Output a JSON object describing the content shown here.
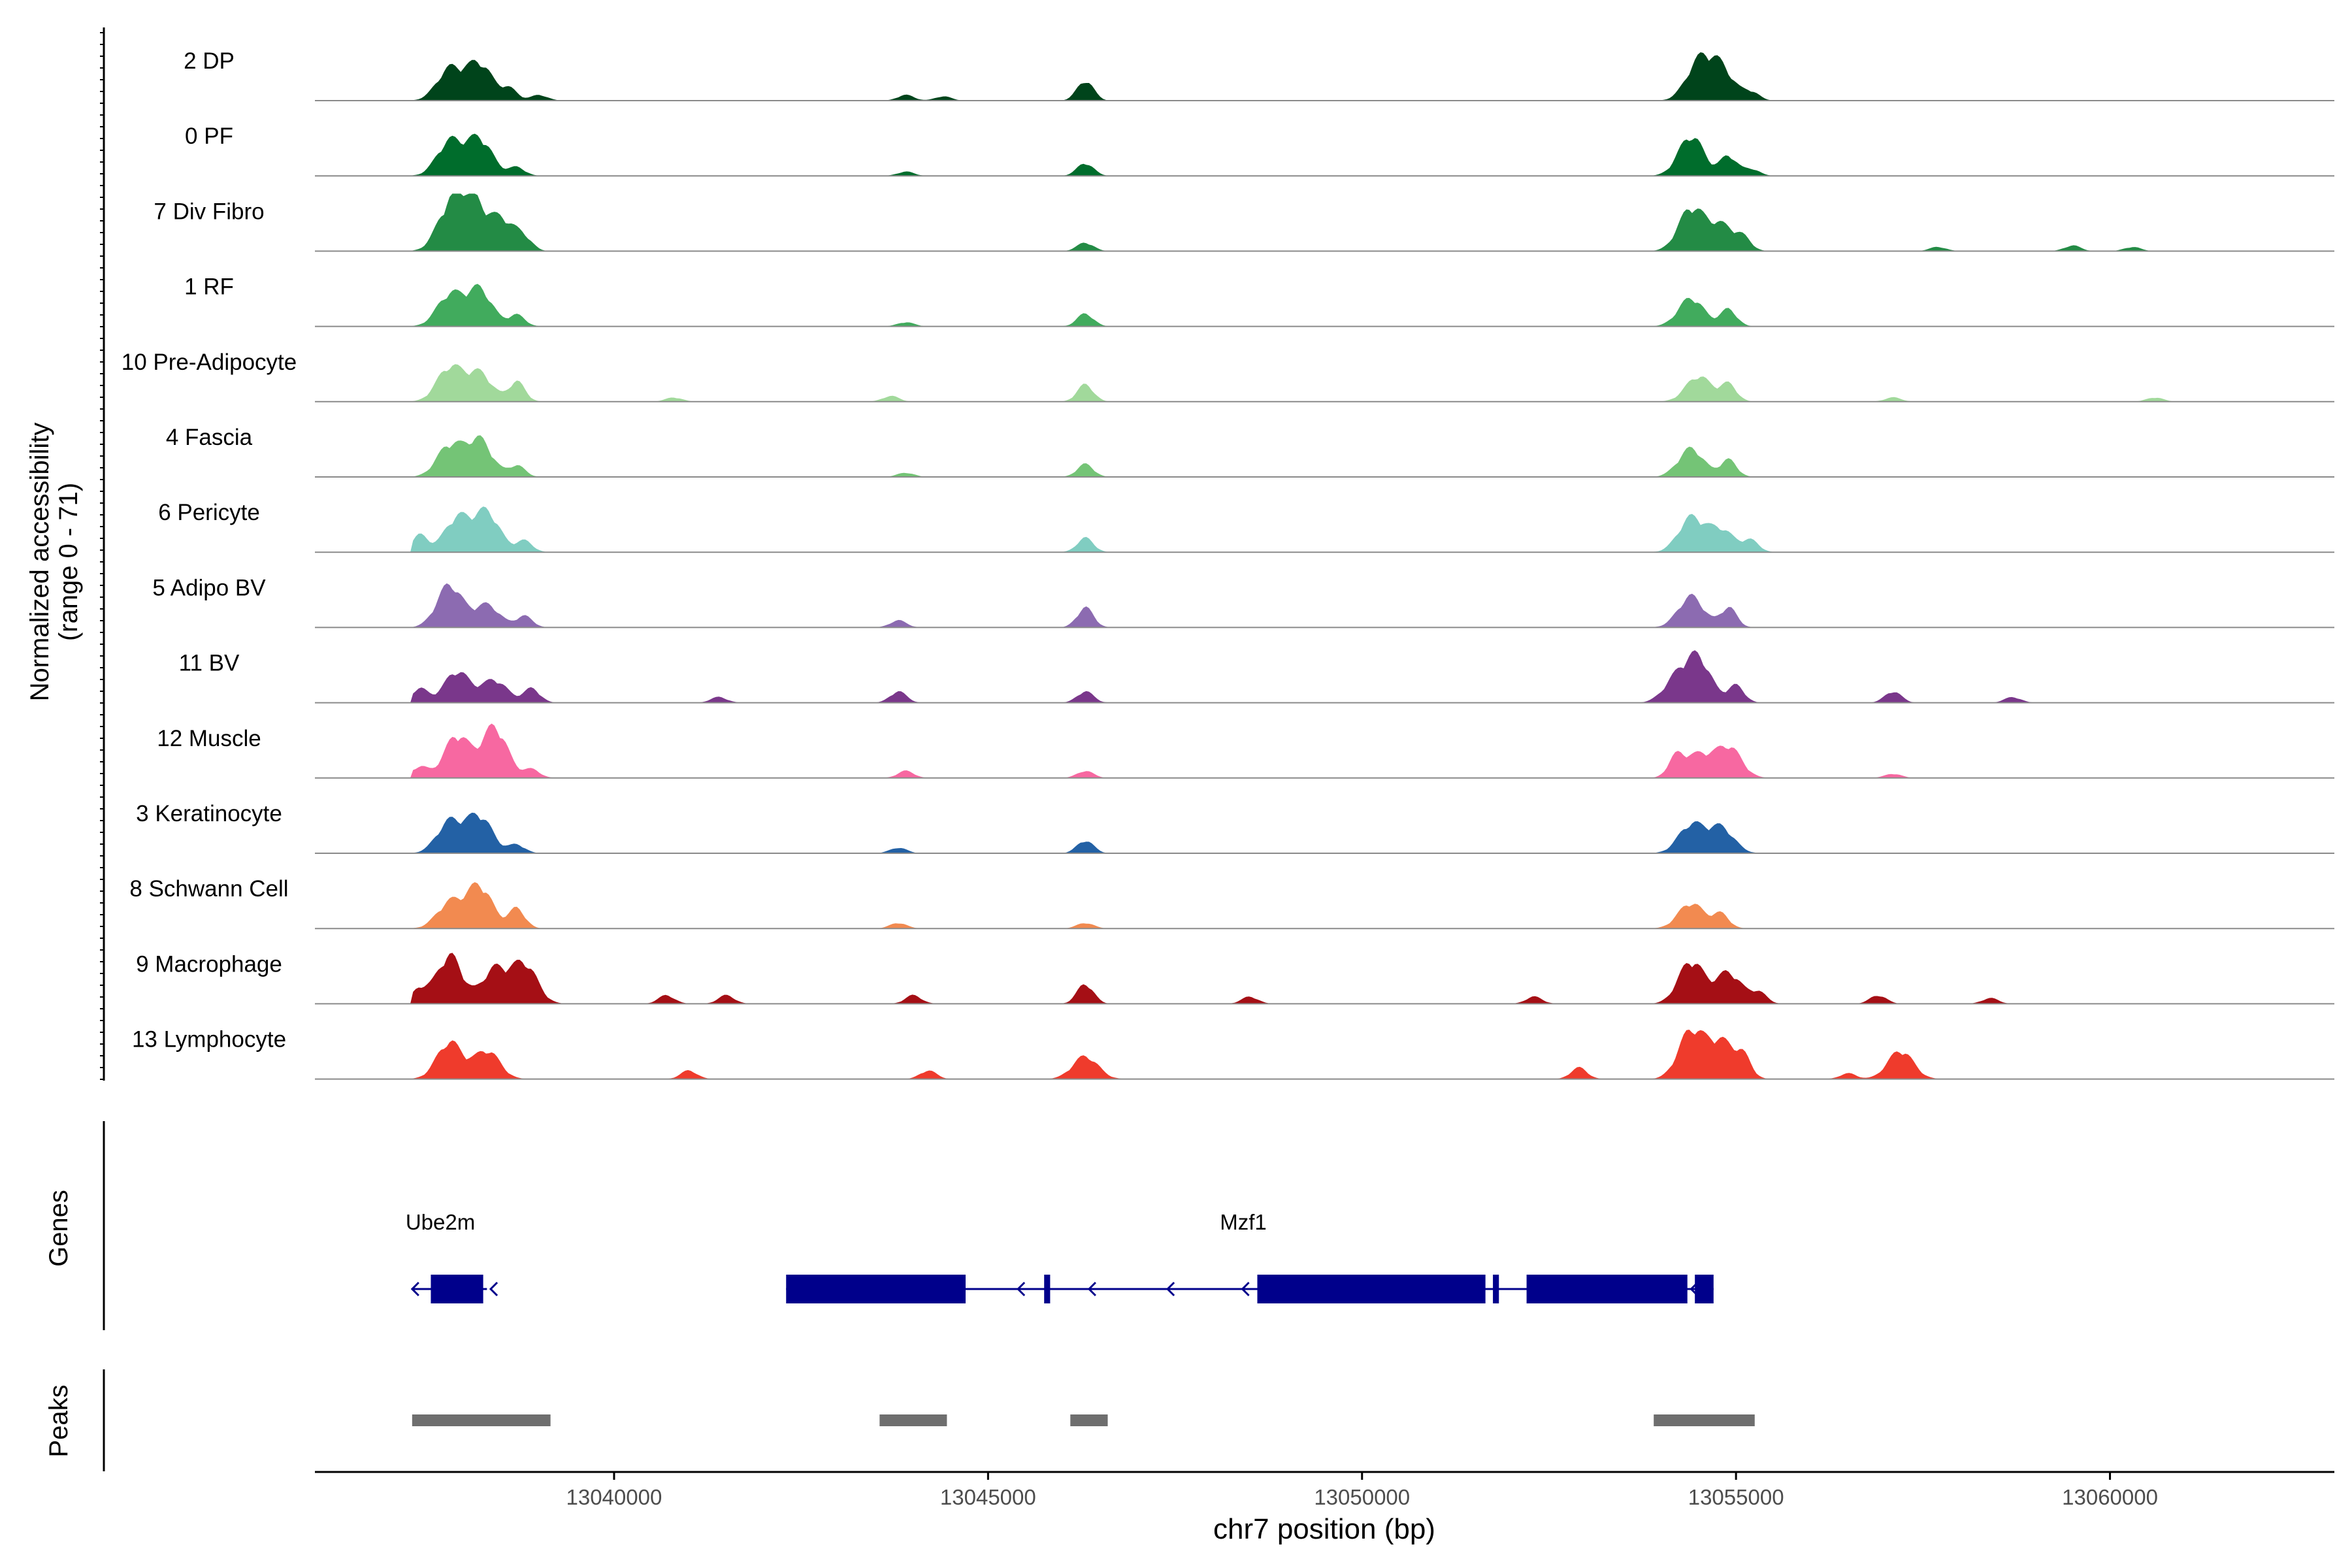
{
  "chart_data": {
    "type": "area",
    "title": "",
    "xlabel": "chr7 position (bp)",
    "ylabel": "Normalized accessibility",
    "ylabel_sub": "(range 0 - 71)",
    "xlim": [
      13036000,
      13063000
    ],
    "xticks": [
      13040000,
      13045000,
      13050000,
      13055000,
      13060000
    ],
    "xtick_labels": [
      "13040000",
      "13045000",
      "13050000",
      "13055000",
      "13060000"
    ],
    "y_range": [
      0,
      71
    ],
    "genes_label": "Genes",
    "peaks_label": "Peaks",
    "tracks": [
      {
        "name": "2 DP",
        "color": "#00441b",
        "peaks": [
          [
            13037800,
            22
          ],
          [
            13038200,
            26
          ],
          [
            13038600,
            8
          ],
          [
            13039000,
            4
          ],
          [
            13043900,
            4
          ],
          [
            13044400,
            3
          ],
          [
            13046300,
            14
          ],
          [
            13054500,
            26
          ],
          [
            13054800,
            22
          ],
          [
            13055200,
            6
          ]
        ]
      },
      {
        "name": "0 PF",
        "color": "#006d2c",
        "peaks": [
          [
            13037800,
            24
          ],
          [
            13038200,
            26
          ],
          [
            13038700,
            6
          ],
          [
            13043900,
            3
          ],
          [
            13046300,
            9
          ],
          [
            13054400,
            28
          ],
          [
            13054900,
            14
          ],
          [
            13055200,
            5
          ]
        ]
      },
      {
        "name": "7 Div Fibro",
        "color": "#238b45",
        "peaks": [
          [
            13037800,
            30
          ],
          [
            13038100,
            34
          ],
          [
            13038500,
            22
          ],
          [
            13038800,
            8
          ],
          [
            13046300,
            6
          ],
          [
            13054400,
            30
          ],
          [
            13054800,
            18
          ],
          [
            13055100,
            8
          ],
          [
            13057700,
            3
          ],
          [
            13059500,
            4
          ],
          [
            13060300,
            3
          ]
        ]
      },
      {
        "name": "1 RF",
        "color": "#41ab5d",
        "peaks": [
          [
            13037800,
            22
          ],
          [
            13038200,
            26
          ],
          [
            13038700,
            8
          ],
          [
            13043900,
            3
          ],
          [
            13046300,
            9
          ],
          [
            13054400,
            20
          ],
          [
            13054900,
            12
          ]
        ]
      },
      {
        "name": "10 Pre-Adipocyte",
        "color": "#a1d99b",
        "peaks": [
          [
            13037800,
            24
          ],
          [
            13038200,
            20
          ],
          [
            13038700,
            14
          ],
          [
            13040800,
            3
          ],
          [
            13043700,
            4
          ],
          [
            13046300,
            12
          ],
          [
            13054500,
            18
          ],
          [
            13054900,
            12
          ],
          [
            13057100,
            3
          ],
          [
            13060600,
            3
          ]
        ]
      },
      {
        "name": "4 Fascia",
        "color": "#74c476",
        "peaks": [
          [
            13037800,
            22
          ],
          [
            13038200,
            26
          ],
          [
            13038700,
            8
          ],
          [
            13043900,
            3
          ],
          [
            13046300,
            9
          ],
          [
            13054400,
            20
          ],
          [
            13054900,
            12
          ]
        ]
      },
      {
        "name": "6 Pericyte",
        "color": "#80cdc1",
        "peaks": [
          [
            13037400,
            12
          ],
          [
            13037900,
            24
          ],
          [
            13038300,
            28
          ],
          [
            13038800,
            8
          ],
          [
            13046300,
            10
          ],
          [
            13054400,
            24
          ],
          [
            13054800,
            16
          ],
          [
            13055200,
            8
          ]
        ]
      },
      {
        "name": "5 Adipo BV",
        "color": "#8c6bb1",
        "peaks": [
          [
            13037800,
            30
          ],
          [
            13038300,
            16
          ],
          [
            13038800,
            8
          ],
          [
            13043800,
            5
          ],
          [
            13046300,
            14
          ],
          [
            13054400,
            22
          ],
          [
            13054900,
            14
          ]
        ]
      },
      {
        "name": "11 BV",
        "color": "#7a378b",
        "peaks": [
          [
            13037400,
            10
          ],
          [
            13037900,
            22
          ],
          [
            13038400,
            16
          ],
          [
            13038900,
            10
          ],
          [
            13041400,
            4
          ],
          [
            13043800,
            8
          ],
          [
            13046300,
            8
          ],
          [
            13054200,
            16
          ],
          [
            13054500,
            30
          ],
          [
            13055000,
            12
          ],
          [
            13057100,
            8
          ],
          [
            13058700,
            4
          ]
        ]
      },
      {
        "name": "12 Muscle",
        "color": "#f768a1",
        "peaks": [
          [
            13037400,
            8
          ],
          [
            13037900,
            30
          ],
          [
            13038400,
            36
          ],
          [
            13038900,
            6
          ],
          [
            13043900,
            5
          ],
          [
            13046300,
            5
          ],
          [
            13054200,
            14
          ],
          [
            13054500,
            16
          ],
          [
            13054900,
            22
          ],
          [
            13057100,
            3
          ]
        ]
      },
      {
        "name": "3 Keratinocyte",
        "color": "#2361a5",
        "peaks": [
          [
            13037800,
            22
          ],
          [
            13038200,
            26
          ],
          [
            13038700,
            6
          ],
          [
            13043800,
            4
          ],
          [
            13046300,
            9
          ],
          [
            13054400,
            20
          ],
          [
            13054800,
            18
          ]
        ]
      },
      {
        "name": "8 Schwann Cell",
        "color": "#f28a50",
        "peaks": [
          [
            13037800,
            18
          ],
          [
            13038200,
            30
          ],
          [
            13038700,
            14
          ],
          [
            13043800,
            4
          ],
          [
            13046300,
            4
          ],
          [
            13054400,
            18
          ],
          [
            13054800,
            10
          ]
        ]
      },
      {
        "name": "9 Macrophage",
        "color": "#a50f15",
        "peaks": [
          [
            13037400,
            10
          ],
          [
            13037800,
            34
          ],
          [
            13038400,
            24
          ],
          [
            13038800,
            28
          ],
          [
            13040700,
            6
          ],
          [
            13041500,
            6
          ],
          [
            13044000,
            6
          ],
          [
            13046300,
            14
          ],
          [
            13048500,
            5
          ],
          [
            13052300,
            5
          ],
          [
            13054400,
            30
          ],
          [
            13054900,
            22
          ],
          [
            13055300,
            8
          ],
          [
            13056900,
            6
          ],
          [
            13058400,
            4
          ]
        ]
      },
      {
        "name": "13 Lymphocyte",
        "color": "#ef3b2c",
        "peaks": [
          [
            13037800,
            26
          ],
          [
            13038300,
            20
          ],
          [
            13041000,
            6
          ],
          [
            13044200,
            6
          ],
          [
            13046300,
            16
          ],
          [
            13052900,
            8
          ],
          [
            13054400,
            34
          ],
          [
            13054800,
            26
          ],
          [
            13055100,
            14
          ],
          [
            13056500,
            4
          ],
          [
            13057200,
            20
          ]
        ]
      }
    ],
    "genes": [
      {
        "name": "Ube2m",
        "strand": "-",
        "start": 13037300,
        "end": 13038300,
        "exons": [
          [
            13037550,
            13038250
          ]
        ]
      },
      {
        "name": "Mzf1",
        "strand": "-",
        "start": 13042300,
        "end": 13054700,
        "exons": [
          [
            13042300,
            13044700
          ],
          [
            13045750,
            13045830
          ],
          [
            13048600,
            13051650
          ],
          [
            13051750,
            13051830
          ],
          [
            13052200,
            13054350
          ],
          [
            13054450,
            13054700
          ]
        ]
      }
    ],
    "peaks": [
      [
        13037300,
        13039150
      ],
      [
        13043550,
        13044450
      ],
      [
        13046100,
        13046600
      ],
      [
        13053900,
        13055250
      ]
    ]
  }
}
